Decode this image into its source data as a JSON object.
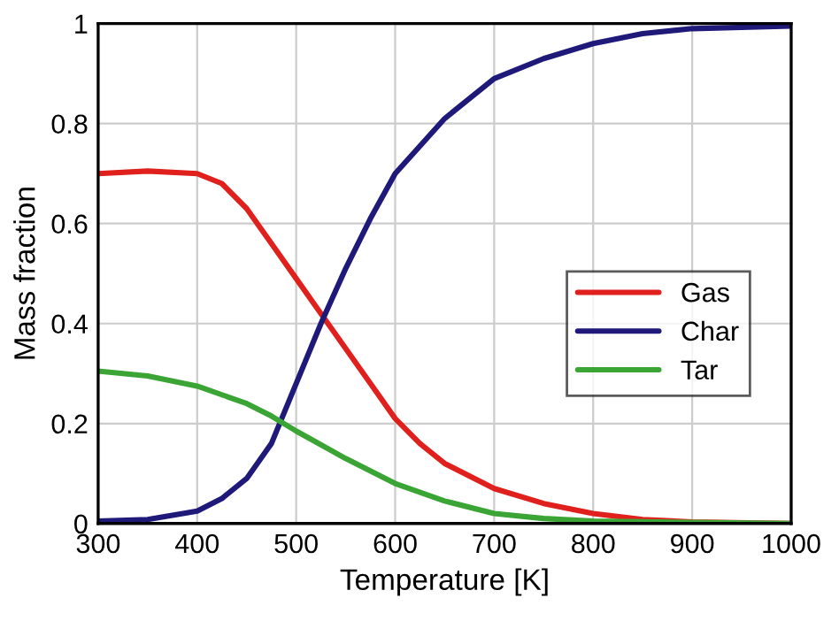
{
  "chart_data": {
    "type": "line",
    "xlabel": "Temperature [K]",
    "ylabel": "Mass fraction",
    "xlim": [
      300,
      1000
    ],
    "xticks": [
      300,
      400,
      500,
      600,
      700,
      800,
      900,
      1000
    ],
    "ylim": [
      0,
      1
    ],
    "yticks": [
      0,
      0.2,
      0.4,
      0.6,
      0.8,
      1
    ],
    "grid": true,
    "legend": "right",
    "series": [
      {
        "name": "Gas",
        "color": "#e0201c",
        "x": [
          300,
          350,
          400,
          425,
          450,
          475,
          500,
          525,
          550,
          575,
          600,
          625,
          650,
          700,
          750,
          800,
          850,
          900,
          1000
        ],
        "values": [
          0.7,
          0.705,
          0.7,
          0.68,
          0.63,
          0.56,
          0.49,
          0.42,
          0.35,
          0.28,
          0.21,
          0.16,
          0.12,
          0.07,
          0.04,
          0.02,
          0.008,
          0.003,
          0
        ]
      },
      {
        "name": "Char",
        "color": "#1f1a7a",
        "x": [
          300,
          350,
          400,
          425,
          450,
          475,
          500,
          525,
          550,
          575,
          600,
          650,
          700,
          750,
          800,
          850,
          900,
          1000
        ],
        "values": [
          0.005,
          0.008,
          0.025,
          0.05,
          0.09,
          0.16,
          0.28,
          0.4,
          0.51,
          0.61,
          0.7,
          0.81,
          0.89,
          0.93,
          0.96,
          0.98,
          0.99,
          0.995
        ]
      },
      {
        "name": "Tar",
        "color": "#3aa535",
        "x": [
          300,
          350,
          400,
          450,
          475,
          500,
          550,
          600,
          650,
          700,
          750,
          800,
          900,
          1000
        ],
        "values": [
          0.305,
          0.295,
          0.275,
          0.24,
          0.215,
          0.185,
          0.13,
          0.08,
          0.045,
          0.02,
          0.01,
          0.005,
          0.002,
          0
        ]
      }
    ]
  }
}
